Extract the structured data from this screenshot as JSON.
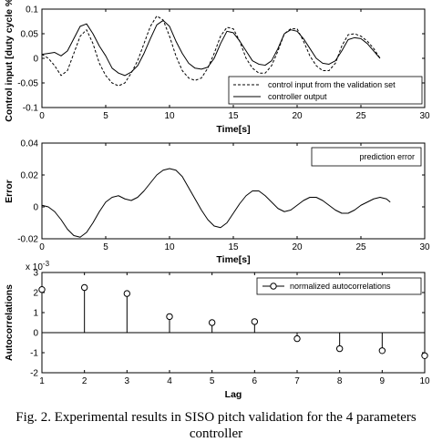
{
  "caption": "Fig. 2. Experimental results in SISO pitch validation for the 4 parameters controller",
  "chart_data": [
    {
      "type": "line",
      "xlabel": "Time[s]",
      "ylabel": "Control input [duty cycle %]",
      "xlim": [
        0,
        30
      ],
      "ylim": [
        -0.1,
        0.1
      ],
      "xticks": [
        0,
        5,
        10,
        15,
        20,
        25,
        30
      ],
      "yticks": [
        -0.1,
        -0.05,
        0,
        0.05,
        0.1
      ],
      "xtick_labels": [
        "0",
        "5",
        "10",
        "15",
        "20",
        "25",
        "30"
      ],
      "ytick_labels": [
        "-0.1",
        "-0.05",
        "0",
        "0.05",
        "0.1"
      ],
      "legend": "bottom-right",
      "series": [
        {
          "name": "control input from the validation set",
          "style": "dashed",
          "x": [
            0,
            0.5,
            1,
            1.5,
            2,
            2.5,
            3,
            3.5,
            4,
            4.5,
            5,
            5.5,
            6,
            6.5,
            7,
            7.5,
            8,
            8.5,
            9,
            9.5,
            10,
            10.5,
            11,
            11.5,
            12,
            12.5,
            13,
            13.5,
            14,
            14.5,
            15,
            15.5,
            16,
            16.5,
            17,
            17.5,
            18,
            18.5,
            19,
            19.5,
            20,
            20.5,
            21,
            21.5,
            22,
            22.5,
            23,
            23.5,
            24,
            24.5,
            25,
            25.5,
            26,
            26.5
          ],
          "y": [
            0.008,
            0.0,
            -0.015,
            -0.035,
            -0.025,
            0.01,
            0.045,
            0.058,
            0.03,
            -0.01,
            -0.035,
            -0.05,
            -0.056,
            -0.05,
            -0.03,
            -0.005,
            0.03,
            0.065,
            0.086,
            0.078,
            0.045,
            0.005,
            -0.025,
            -0.04,
            -0.045,
            -0.04,
            -0.02,
            0.01,
            0.045,
            0.063,
            0.06,
            0.035,
            0.0,
            -0.02,
            -0.03,
            -0.03,
            -0.015,
            0.015,
            0.05,
            0.06,
            0.06,
            0.035,
            0.005,
            -0.015,
            -0.025,
            -0.025,
            -0.01,
            0.025,
            0.048,
            0.05,
            0.045,
            0.035,
            0.02,
            0.0
          ]
        },
        {
          "name": "controller output",
          "style": "solid",
          "x": [
            0,
            0.5,
            1,
            1.5,
            2,
            2.5,
            3,
            3.5,
            4,
            4.5,
            5,
            5.5,
            6,
            6.5,
            7,
            7.5,
            8,
            8.5,
            9,
            9.5,
            10,
            10.5,
            11,
            11.5,
            12,
            12.5,
            13,
            13.5,
            14,
            14.5,
            15,
            15.5,
            16,
            16.5,
            17,
            17.5,
            18,
            18.5,
            19,
            19.5,
            20,
            20.5,
            21,
            21.5,
            22,
            22.5,
            23,
            23.5,
            24,
            24.5,
            25,
            25.5,
            26,
            26.5
          ],
          "y": [
            0.008,
            0.01,
            0.012,
            0.005,
            0.015,
            0.04,
            0.065,
            0.07,
            0.05,
            0.025,
            0.005,
            -0.02,
            -0.03,
            -0.035,
            -0.028,
            -0.015,
            0.01,
            0.04,
            0.068,
            0.077,
            0.065,
            0.035,
            0.01,
            -0.01,
            -0.02,
            -0.022,
            -0.018,
            0.0,
            0.03,
            0.055,
            0.052,
            0.035,
            0.015,
            -0.005,
            -0.012,
            -0.014,
            -0.005,
            0.02,
            0.05,
            0.058,
            0.055,
            0.04,
            0.02,
            0.0,
            -0.01,
            -0.012,
            -0.005,
            0.015,
            0.038,
            0.042,
            0.04,
            0.03,
            0.015,
            0.0
          ]
        }
      ]
    },
    {
      "type": "line",
      "xlabel": "Time[s]",
      "ylabel": "Error",
      "xlim": [
        0,
        30
      ],
      "ylim": [
        -0.02,
        0.04
      ],
      "xticks": [
        0,
        5,
        10,
        15,
        20,
        25,
        30
      ],
      "yticks": [
        -0.02,
        0,
        0.02,
        0.04
      ],
      "xtick_labels": [
        "0",
        "5",
        "10",
        "15",
        "20",
        "25",
        "30"
      ],
      "ytick_labels": [
        "-0.02",
        "0",
        "0.02",
        "0.04"
      ],
      "legend": "top-right",
      "series": [
        {
          "name": "prediction error",
          "style": "solid",
          "x": [
            0,
            0.5,
            1,
            1.5,
            2,
            2.5,
            3,
            3.5,
            4,
            4.5,
            5,
            5.5,
            6,
            6.5,
            7,
            7.5,
            8,
            8.5,
            9,
            9.5,
            10,
            10.5,
            11,
            11.5,
            12,
            12.5,
            13,
            13.5,
            14,
            14.5,
            15,
            15.5,
            16,
            16.5,
            17,
            17.5,
            18,
            18.5,
            19,
            19.5,
            20,
            20.5,
            21,
            21.5,
            22,
            22.5,
            23,
            23.5,
            24,
            24.5,
            25,
            25.5,
            26,
            26.5,
            27,
            27.3
          ],
          "y": [
            0.001,
            0.0,
            -0.003,
            -0.008,
            -0.014,
            -0.018,
            -0.019,
            -0.016,
            -0.01,
            -0.003,
            0.003,
            0.006,
            0.007,
            0.005,
            0.004,
            0.006,
            0.01,
            0.015,
            0.02,
            0.023,
            0.024,
            0.023,
            0.019,
            0.012,
            0.005,
            -0.002,
            -0.008,
            -0.012,
            -0.013,
            -0.01,
            -0.004,
            0.002,
            0.007,
            0.01,
            0.01,
            0.007,
            0.003,
            -0.001,
            -0.003,
            -0.002,
            0.001,
            0.004,
            0.006,
            0.006,
            0.004,
            0.001,
            -0.002,
            -0.004,
            -0.004,
            -0.002,
            0.001,
            0.003,
            0.005,
            0.006,
            0.005,
            0.003
          ]
        }
      ]
    },
    {
      "type": "stem",
      "xlabel": "Lag",
      "ylabel": "Autocorrelations",
      "y_exponent_label": "x 10",
      "y_exponent": "-3",
      "xlim": [
        1,
        10
      ],
      "ylim": [
        -2,
        3
      ],
      "xticks": [
        1,
        2,
        3,
        4,
        5,
        6,
        7,
        8,
        9,
        10
      ],
      "yticks": [
        -2,
        -1,
        0,
        1,
        2,
        3
      ],
      "xtick_labels": [
        "1",
        "2",
        "3",
        "4",
        "5",
        "6",
        "7",
        "8",
        "9",
        "10"
      ],
      "ytick_labels": [
        "-2",
        "-1",
        "0",
        "1",
        "2",
        "3"
      ],
      "legend": "top-right",
      "series": [
        {
          "name": "normalized autocorrelations",
          "x": [
            1,
            2,
            3,
            4,
            5,
            6,
            7,
            8,
            9,
            10
          ],
          "y": [
            2.15,
            2.25,
            1.95,
            0.8,
            0.5,
            0.55,
            -0.3,
            -0.8,
            -0.9,
            -1.15
          ]
        }
      ]
    }
  ]
}
